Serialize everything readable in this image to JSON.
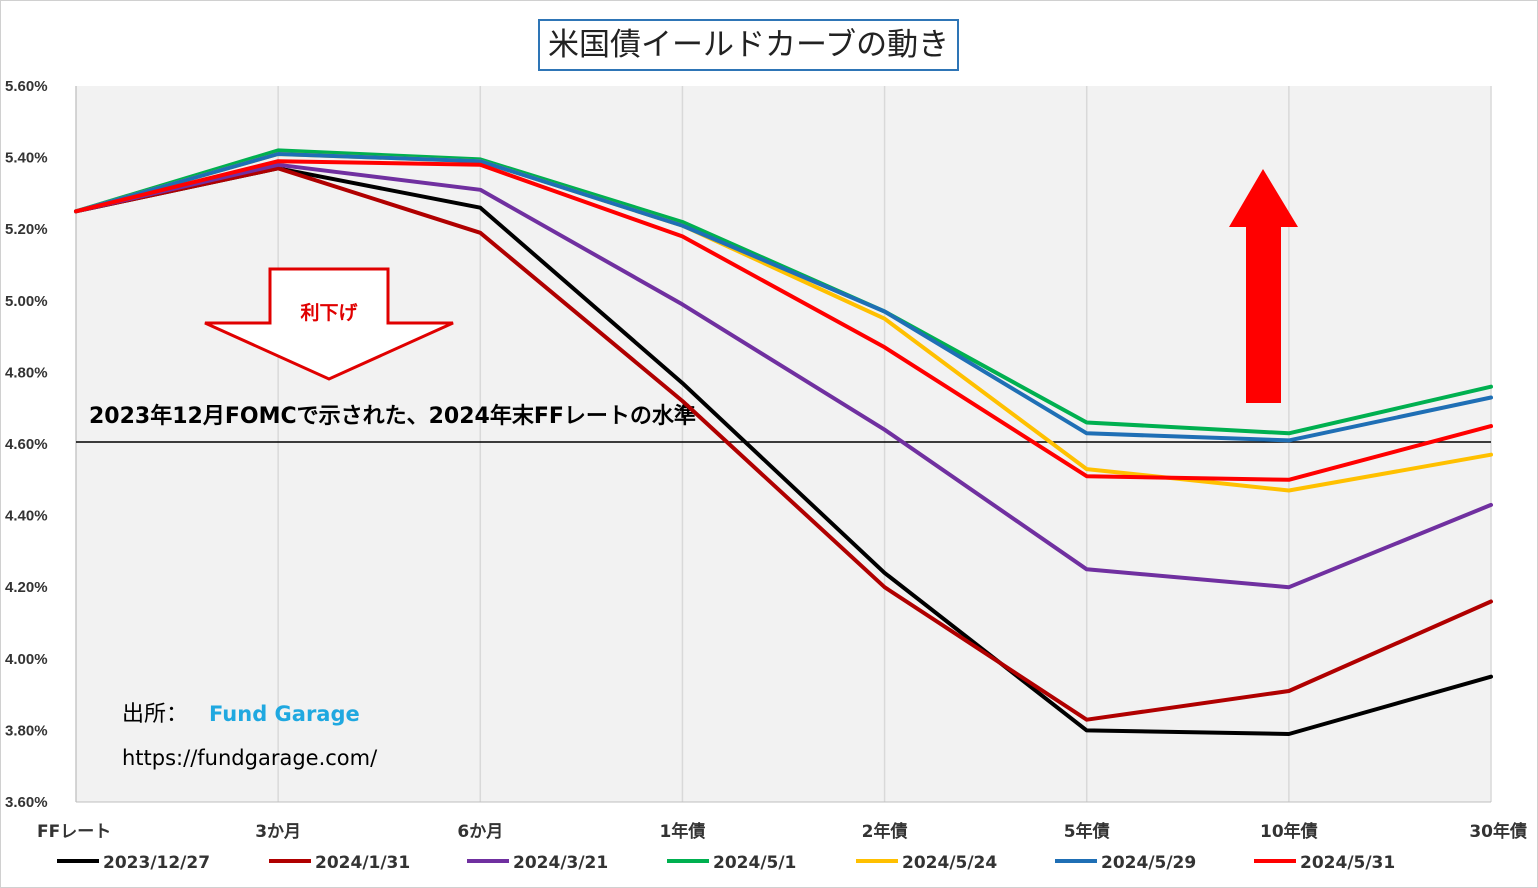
{
  "chart_data": {
    "type": "line",
    "title": "米国債イールドカーブの動き",
    "categories": [
      "FFレート",
      "3か月",
      "6か月",
      "1年債",
      "2年債",
      "5年債",
      "10年債",
      "30年債"
    ],
    "ylim": [
      3.6,
      5.6
    ],
    "yticks": [
      "3.60%",
      "3.80%",
      "4.00%",
      "4.20%",
      "4.40%",
      "4.60%",
      "4.80%",
      "5.00%",
      "5.20%",
      "5.40%",
      "5.60%"
    ],
    "grid": "vertical",
    "legend_position": "bottom",
    "series": [
      {
        "name": "2023/12/27",
        "color": "#000000",
        "values": [
          5.25,
          5.37,
          5.26,
          4.77,
          4.24,
          3.8,
          3.79,
          3.95
        ]
      },
      {
        "name": "2024/1/31",
        "color": "#b00000",
        "values": [
          5.25,
          5.37,
          5.19,
          4.72,
          4.2,
          3.83,
          3.91,
          4.16
        ]
      },
      {
        "name": "2024/3/21",
        "color": "#7030a0",
        "values": [
          5.25,
          5.38,
          5.31,
          4.99,
          4.64,
          4.25,
          4.2,
          4.43
        ]
      },
      {
        "name": "2024/5/1",
        "color": "#00b050",
        "values": [
          5.25,
          5.42,
          5.395,
          5.22,
          4.97,
          4.66,
          4.63,
          4.76
        ]
      },
      {
        "name": "2024/5/24",
        "color": "#ffc000",
        "values": [
          5.25,
          5.41,
          5.39,
          5.21,
          4.95,
          4.53,
          4.47,
          4.57
        ]
      },
      {
        "name": "2024/5/29",
        "color": "#1f6fb5",
        "values": [
          5.25,
          5.41,
          5.39,
          5.21,
          4.97,
          4.63,
          4.61,
          4.73
        ]
      },
      {
        "name": "2024/5/31",
        "color": "#ff0000",
        "values": [
          5.25,
          5.39,
          5.38,
          5.18,
          4.87,
          4.51,
          4.5,
          4.65
        ]
      }
    ],
    "reference_line": {
      "value": 4.6,
      "label": "2023年12月FOMCで示された、2024年末FFレートの水準"
    },
    "annotations": {
      "rate_cut_label": "利下げ",
      "source_label": "出所：",
      "source_name": "Fund Garage",
      "source_url": "https://fundgarage.com/"
    }
  }
}
